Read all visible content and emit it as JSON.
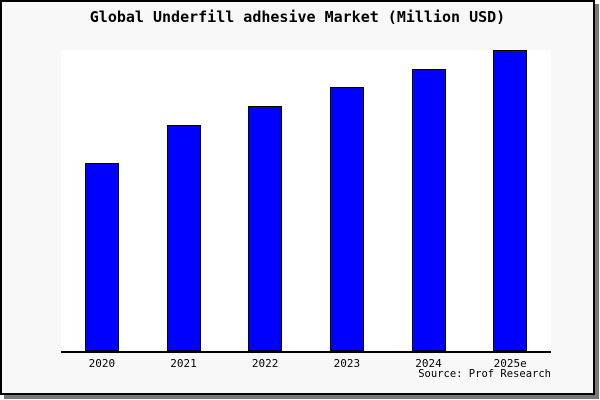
{
  "title": "Global Underfill adhesive Market (Million USD)",
  "source": "Source: Prof Research",
  "colors": {
    "bar_fill": "#0000ff",
    "bar_edge": "#000000",
    "figure_bg": "#f8f8f8",
    "plot_bg": "#ffffff",
    "border": "#000000",
    "shadow": "#777777"
  },
  "chart_data": {
    "type": "bar",
    "title": "Global Underfill adhesive Market (Million USD)",
    "categories": [
      "2020",
      "2021",
      "2022",
      "2023",
      "2024",
      "2025e"
    ],
    "values": [
      188,
      226,
      245,
      264,
      282,
      301
    ],
    "xlabel": "",
    "ylabel": "",
    "ylim": [
      0,
      301
    ],
    "y_axis_visible": false,
    "grid": false,
    "legend_position": "none",
    "note": "No y-axis scale shown in chart; values are relative bar heights"
  }
}
